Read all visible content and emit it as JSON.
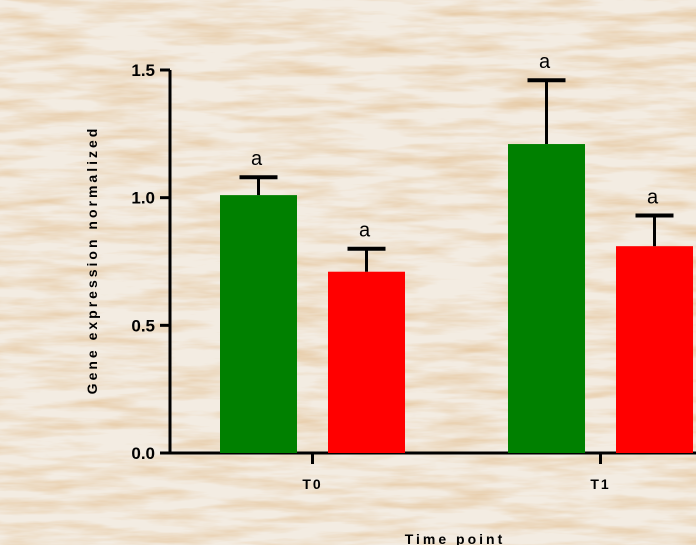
{
  "chart_data": {
    "type": "bar",
    "categories": [
      "T0",
      "T1"
    ],
    "series": [
      {
        "color": "#008000",
        "values": [
          1.01,
          1.21
        ],
        "errors": [
          0.07,
          0.25
        ],
        "labels": [
          "a",
          "a"
        ]
      },
      {
        "color": "#ff0000",
        "values": [
          0.71,
          0.81
        ],
        "errors": [
          0.09,
          0.12
        ],
        "labels": [
          "a",
          "a"
        ]
      }
    ],
    "title": "",
    "xlabel": "Time point",
    "ylabel": "Gene expression normalized",
    "ylim": [
      0,
      1.5
    ],
    "yticks": [
      "0.0",
      "0.5",
      "1.0",
      "1.5"
    ],
    "grid": false,
    "legend": "none"
  }
}
